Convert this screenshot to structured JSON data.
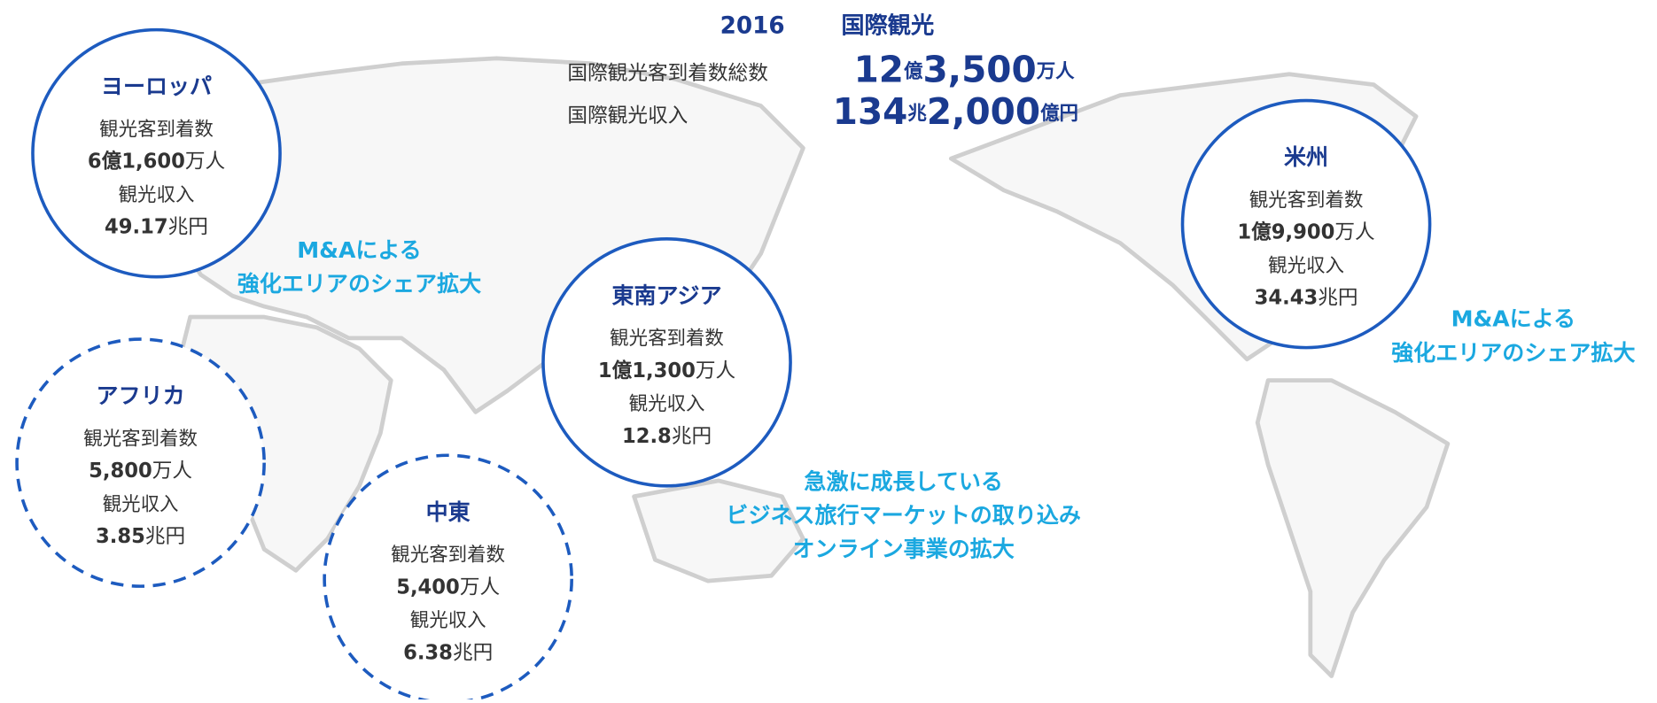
{
  "header": {
    "year": "2016",
    "title": "国際観光",
    "rows": [
      {
        "label": "国際観光客到着数総数",
        "parts": [
          {
            "text": "12",
            "big": true
          },
          {
            "text": "億",
            "big": false
          },
          {
            "text": "3,500",
            "big": true
          },
          {
            "text": "万人",
            "big": false
          }
        ]
      },
      {
        "label": "国際観光収入",
        "parts": [
          {
            "text": "134",
            "big": true
          },
          {
            "text": "兆",
            "big": false
          },
          {
            "text": "2,000",
            "big": true
          },
          {
            "text": "億円",
            "big": false
          }
        ]
      }
    ]
  },
  "regions": [
    {
      "name": "ヨーロッパ",
      "arrivals_label": "観光客到着数",
      "arrivals_bold": "6億1,600",
      "arrivals_unit": "万人",
      "revenue_label": "観光収入",
      "revenue_bold": "49.17",
      "revenue_unit": "兆円",
      "dashed": false
    },
    {
      "name": "米州",
      "arrivals_label": "観光客到着数",
      "arrivals_bold": "1億9,900",
      "arrivals_unit": "万人",
      "revenue_label": "観光収入",
      "revenue_bold": "34.43",
      "revenue_unit": "兆円",
      "dashed": false
    },
    {
      "name": "東南アジア",
      "arrivals_label": "観光客到着数",
      "arrivals_bold": "1億1,300",
      "arrivals_unit": "万人",
      "revenue_label": "観光収入",
      "revenue_bold": "12.8",
      "revenue_unit": "兆円",
      "dashed": false
    },
    {
      "name": "アフリカ",
      "arrivals_label": "観光客到着数",
      "arrivals_bold": "5,800",
      "arrivals_unit": "万人",
      "revenue_label": "観光収入",
      "revenue_bold": "3.85",
      "revenue_unit": "兆円",
      "dashed": true
    },
    {
      "name": "中東",
      "arrivals_label": "観光客到着数",
      "arrivals_bold": "5,400",
      "arrivals_unit": "万人",
      "revenue_label": "観光収入",
      "revenue_bold": "6.38",
      "revenue_unit": "兆円",
      "dashed": true
    }
  ],
  "callouts": [
    {
      "lines": [
        "M&Aによる",
        "強化エリアのシェア拡大"
      ]
    },
    {
      "lines": [
        "M&Aによる",
        "強化エリアのシェア拡大"
      ]
    },
    {
      "lines": [
        "急激に成長している",
        "ビジネス旅行マーケットの取り込み",
        "オンライン事業の拡大"
      ]
    }
  ]
}
